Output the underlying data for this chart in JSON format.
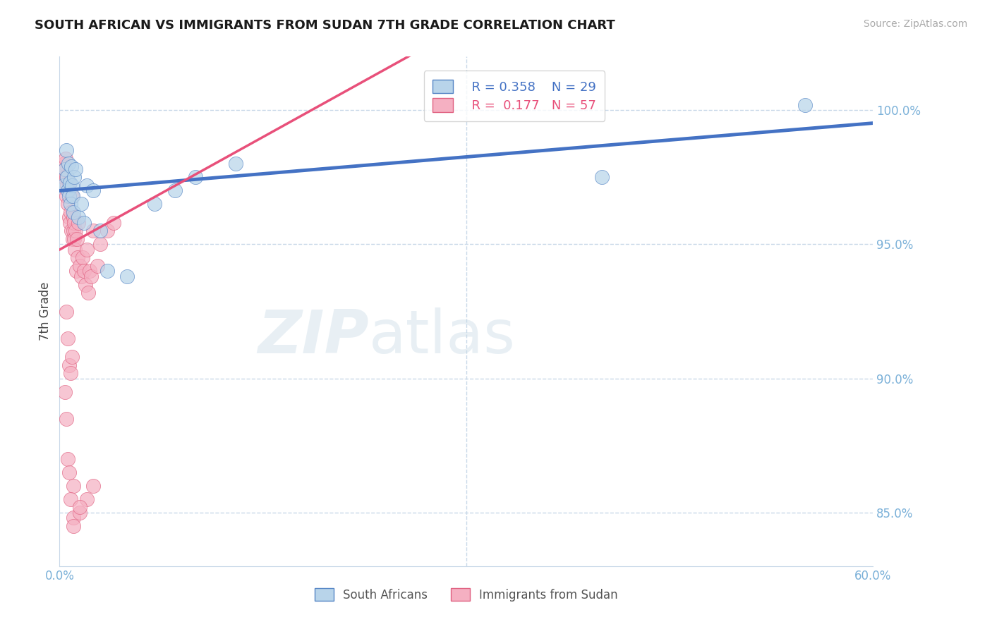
{
  "title": "SOUTH AFRICAN VS IMMIGRANTS FROM SUDAN 7TH GRADE CORRELATION CHART",
  "source": "Source: ZipAtlas.com",
  "ylabel": "7th Grade",
  "xlim": [
    0.0,
    60.0
  ],
  "ylim": [
    83.0,
    102.0
  ],
  "yticks": [
    85.0,
    90.0,
    95.0,
    100.0
  ],
  "ytick_labels": [
    "85.0%",
    "90.0%",
    "95.0%",
    "100.0%"
  ],
  "xticks": [
    0.0,
    10.0,
    20.0,
    30.0,
    40.0,
    50.0,
    60.0
  ],
  "xtick_show": [
    "0.0%",
    "",
    "",
    "",
    "",
    "",
    "60.0%"
  ],
  "legend_r1": "R = 0.358",
  "legend_n1": "N = 29",
  "legend_r2": "R =  0.177",
  "legend_n2": "N = 57",
  "watermark_zip": "ZIP",
  "watermark_atlas": "atlas",
  "blue_fill": "#b8d4ea",
  "pink_fill": "#f5b0c2",
  "blue_edge": "#5585c5",
  "pink_edge": "#e06080",
  "blue_line": "#4472c4",
  "pink_line": "#e8507a",
  "axis_tick_color": "#7ab0d8",
  "grid_color": "#c8d8e8",
  "sa_x": [
    0.3,
    0.4,
    0.5,
    0.55,
    0.6,
    0.65,
    0.7,
    0.75,
    0.8,
    0.85,
    0.9,
    0.95,
    1.0,
    1.1,
    1.2,
    1.4,
    1.6,
    1.8,
    2.0,
    2.5,
    3.0,
    3.5,
    5.0,
    7.0,
    8.5,
    10.0,
    13.0,
    40.0,
    55.0
  ],
  "sa_y": [
    97.2,
    97.8,
    98.5,
    97.5,
    97.0,
    98.0,
    96.8,
    97.3,
    96.5,
    97.9,
    97.2,
    96.8,
    96.2,
    97.5,
    97.8,
    96.0,
    96.5,
    95.8,
    97.2,
    97.0,
    95.5,
    94.0,
    93.8,
    96.5,
    97.0,
    97.5,
    98.0,
    97.5,
    100.2
  ],
  "su_x": [
    0.3,
    0.35,
    0.4,
    0.45,
    0.5,
    0.5,
    0.55,
    0.6,
    0.65,
    0.7,
    0.7,
    0.75,
    0.8,
    0.85,
    0.9,
    0.95,
    1.0,
    1.0,
    1.05,
    1.1,
    1.15,
    1.2,
    1.25,
    1.3,
    1.35,
    1.4,
    1.5,
    1.6,
    1.7,
    1.8,
    1.9,
    2.0,
    2.1,
    2.2,
    2.3,
    2.5,
    2.8,
    3.0,
    3.5,
    4.0,
    0.5,
    0.6,
    0.7,
    0.8,
    0.9,
    1.0,
    0.4,
    0.5,
    0.6,
    0.7,
    0.8,
    1.0,
    1.5,
    2.0,
    1.0,
    1.5,
    2.5
  ],
  "su_y": [
    97.5,
    98.0,
    97.8,
    98.2,
    97.5,
    96.8,
    97.2,
    96.5,
    97.0,
    96.0,
    97.3,
    95.8,
    96.2,
    95.5,
    96.8,
    95.2,
    96.0,
    95.5,
    95.8,
    95.2,
    94.8,
    95.5,
    94.0,
    95.2,
    94.5,
    95.8,
    94.2,
    93.8,
    94.5,
    94.0,
    93.5,
    94.8,
    93.2,
    94.0,
    93.8,
    95.5,
    94.2,
    95.0,
    95.5,
    95.8,
    92.5,
    91.5,
    90.5,
    90.2,
    90.8,
    86.0,
    89.5,
    88.5,
    87.0,
    86.5,
    85.5,
    84.8,
    85.0,
    85.5,
    84.5,
    85.2,
    86.0
  ]
}
